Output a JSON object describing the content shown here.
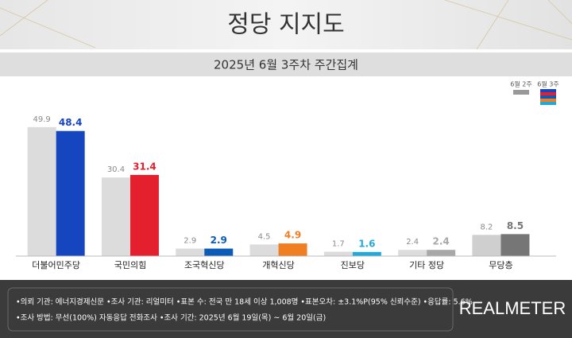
{
  "chart_data": {
    "type": "bar",
    "title": "정당 지지도",
    "subtitle": "2025년 6월 3주차 주간집계",
    "categories": [
      "더불어민주당",
      "국민의힘",
      "조국혁신당",
      "개혁신당",
      "진보당",
      "기타 정당",
      "무당층"
    ],
    "series": [
      {
        "name": "6월 2주",
        "color": "#dcdcdc",
        "label_color": "#8a8a8a",
        "values": [
          49.9,
          30.4,
          2.9,
          4.5,
          1.7,
          2.4,
          8.2
        ]
      },
      {
        "name": "6월 3주",
        "colors": [
          "#1546c0",
          "#e5202e",
          "#0b5cb8",
          "#f07e22",
          "#22a9dc",
          "#a8a8a8",
          "#767676"
        ],
        "values": [
          48.4,
          31.4,
          2.9,
          4.9,
          1.6,
          2.4,
          8.5
        ]
      }
    ]
  },
  "footer": {
    "notes": [
      "•의뢰 기관: 에너지경제신문 •조사 기관: 리얼미터 •표본 수: 전국 만 18세 이상 1,008명 •표본오차: ±3.1%P(95% 신뢰수준) •응답률: 5.6%",
      "•조사 방법: 무선(100%) 자동응답 전화조사 •조사 기간: 2025년 6월 19일(목) ~ 6월 20일(금)"
    ],
    "brand": "REALMETER"
  }
}
